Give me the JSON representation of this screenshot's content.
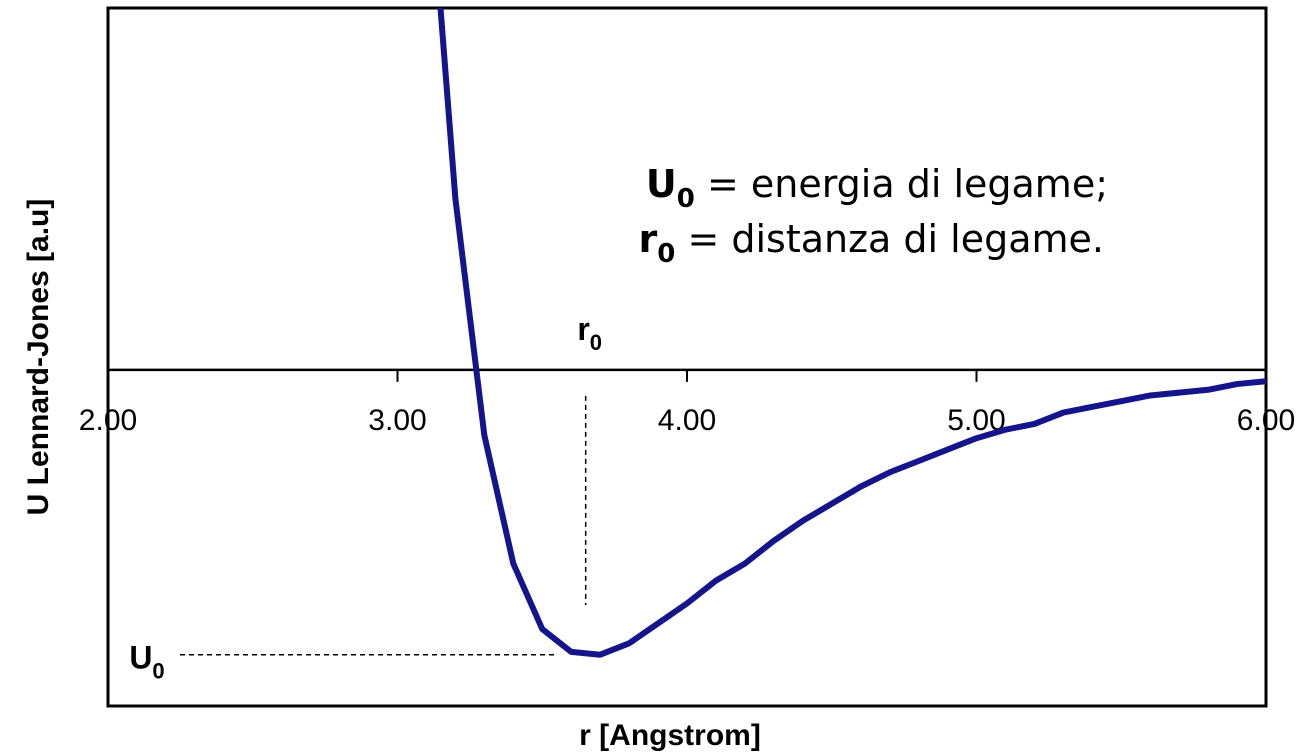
{
  "chart_data": {
    "type": "line",
    "xlabel": "r [Angstrom]",
    "ylabel": "U Lennard-Jones  [a.u]",
    "x": [
      3.1,
      3.2,
      3.3,
      3.4,
      3.5,
      3.6,
      3.7,
      3.8,
      3.9,
      4.0,
      4.1,
      4.2,
      4.3,
      4.4,
      4.5,
      4.6,
      4.7,
      4.8,
      4.9,
      5.0,
      5.1,
      5.2,
      5.3,
      5.4,
      5.5,
      5.6,
      5.7,
      5.8,
      5.9,
      6.0
    ],
    "series": [
      {
        "color": "#14148c",
        "values": [
          1.9,
          0.6,
          -0.23,
          -0.68,
          -0.91,
          -0.99,
          -1.0,
          -0.96,
          -0.89,
          -0.82,
          -0.74,
          -0.68,
          -0.6,
          -0.53,
          -0.47,
          -0.41,
          -0.36,
          -0.32,
          -0.28,
          -0.24,
          -0.21,
          -0.19,
          -0.15,
          -0.13,
          -0.11,
          -0.09,
          -0.08,
          -0.07,
          -0.05,
          -0.04
        ]
      }
    ],
    "xlim": [
      2,
      6
    ],
    "ylim": [
      -1.18,
      1.27
    ],
    "xticks": [
      {
        "value": 2,
        "label": "2.00"
      },
      {
        "value": 3,
        "label": "3.00"
      },
      {
        "value": 4,
        "label": "4.00"
      },
      {
        "value": 5,
        "label": "5.00"
      },
      {
        "value": 6,
        "label": "6.00"
      }
    ],
    "r0": 3.65,
    "U0": -1.0,
    "r0_label": {
      "symbol": "r",
      "subscript": "0"
    },
    "U0_label": {
      "symbol": "U",
      "subscript": "0"
    },
    "annotations": [
      {
        "symbol": "U",
        "subscript": "0",
        "text": " = energia di legame;"
      },
      {
        "symbol": "r",
        "subscript": "0",
        "text": " = distanza di legame."
      }
    ]
  }
}
